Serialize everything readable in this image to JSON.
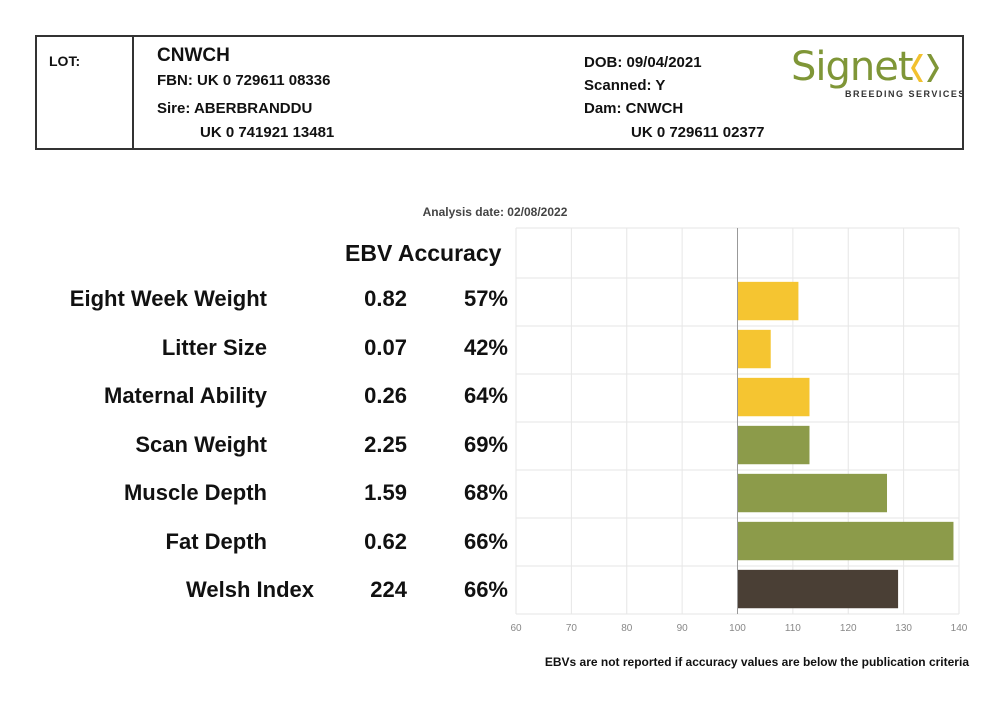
{
  "header": {
    "lot_label": "LOT:",
    "name": "CNWCH",
    "fbn": "FBN: UK 0 729611 08336",
    "sire": "Sire: ABERBRANDDU",
    "sire_id": "UK 0 741921 13481",
    "dob": "DOB: 09/04/2021",
    "scanned": "Scanned: Y",
    "dam": "Dam: CNWCH",
    "dam_id": "UK 0 729611 02377"
  },
  "logo": {
    "word": "Signet",
    "subtitle": "BREEDING SERVICES",
    "colors": {
      "text": "#7f9637",
      "left_chevron": "#f2c12e",
      "right_chevron": "#7f9637"
    }
  },
  "analysis_date": "Analysis date: 02/08/2022",
  "column_header": "EBV Accuracy",
  "rows": [
    {
      "trait": "Eight Week Weight",
      "ebv": "0.82",
      "accuracy": "57%"
    },
    {
      "trait": "Litter Size",
      "ebv": "0.07",
      "accuracy": "42%"
    },
    {
      "trait": "Maternal Ability",
      "ebv": "0.26",
      "accuracy": "64%"
    },
    {
      "trait": "Scan Weight",
      "ebv": "2.25",
      "accuracy": "69%"
    },
    {
      "trait": "Muscle Depth",
      "ebv": "1.59",
      "accuracy": "68%"
    },
    {
      "trait": "Fat Depth",
      "ebv": "0.62",
      "accuracy": "66%"
    },
    {
      "trait": "Welsh Index",
      "ebv": "224",
      "accuracy": "66%"
    }
  ],
  "chart_data": {
    "type": "bar",
    "orientation": "horizontal",
    "baseline": 100,
    "categories": [
      "Eight Week Weight",
      "Litter Size",
      "Maternal Ability",
      "Scan Weight",
      "Muscle Depth",
      "Fat Depth",
      "Welsh Index"
    ],
    "values": [
      111,
      106,
      113,
      113,
      127,
      139,
      129
    ],
    "colors": [
      "#f5c531",
      "#f5c531",
      "#f5c531",
      "#8c9b4a",
      "#8c9b4a",
      "#8c9b4a",
      "#4a3f35"
    ],
    "xlim": [
      60,
      140
    ],
    "xticks": [
      60,
      70,
      80,
      90,
      100,
      110,
      120,
      130,
      140
    ],
    "grid": true,
    "gridline_color": "#e6e6e6",
    "baseline_color": "#999999"
  },
  "footnote": "EBVs are not reported if accuracy values are below the publication criteria"
}
